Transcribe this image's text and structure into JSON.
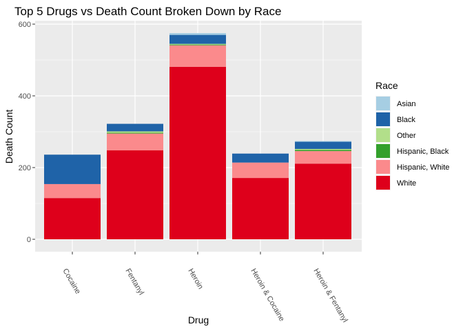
{
  "chart_data": {
    "type": "bar",
    "stacked": true,
    "title": "Top 5 Drugs vs Death Count Broken Down by Race",
    "xlabel": "Drug",
    "ylabel": "Death Count",
    "categories": [
      "Cocaine",
      "Fentanyl",
      "Heroin",
      "Heroin & Cocaine",
      "Heroin & Fentanyl"
    ],
    "ylim": [
      0,
      600
    ],
    "yticks": [
      0,
      200,
      400,
      600
    ],
    "grid": true,
    "legend_title": "Race",
    "legend_position": "right",
    "series": [
      {
        "name": "White",
        "color": "#de001b",
        "values": [
          115,
          248,
          481,
          171,
          211
        ]
      },
      {
        "name": "Hispanic, White",
        "color": "#fb8a8c",
        "values": [
          39,
          47,
          60,
          43,
          35
        ]
      },
      {
        "name": "Hispanic, Black",
        "color": "#33a02c",
        "values": [
          0,
          2,
          2,
          0,
          3
        ]
      },
      {
        "name": "Other",
        "color": "#b2df8a",
        "values": [
          0,
          4,
          2,
          0,
          3
        ]
      },
      {
        "name": "Black",
        "color": "#1f63a8",
        "values": [
          82,
          21,
          25,
          25,
          20
        ]
      },
      {
        "name": "Asian",
        "color": "#a6cee3",
        "values": [
          0,
          0,
          5,
          0,
          2
        ]
      }
    ],
    "legend_order": [
      "Asian",
      "Black",
      "Other",
      "Hispanic, Black",
      "Hispanic, White",
      "White"
    ]
  }
}
